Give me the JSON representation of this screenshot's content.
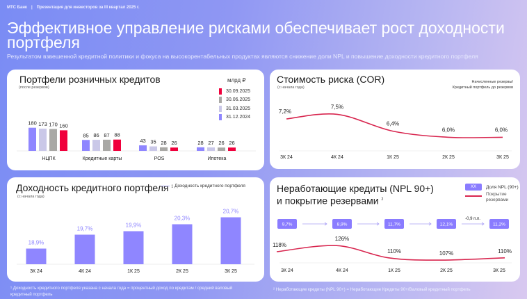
{
  "header": {
    "brand": "МТС Банк",
    "separator": "|",
    "presentation": "Презентация для инвесторов за III квартал 2025 г.",
    "title": "Эффективное управление рисками обеспечивает рост доходности портфеля",
    "subtitle": "Результатом взвешенной кредитной политики и фокуса на высокорентабельных продуктах являются снижение доли NPL и повышение доходности кредитного портфеля"
  },
  "chart_data": [
    {
      "type": "bar",
      "title": "Портфели розничных кредитов",
      "subtitle": "(после резервов)",
      "unit": "млрд ₽",
      "categories": [
        "НЦПК",
        "Кредитные карты",
        "POS",
        "Ипотека"
      ],
      "series": [
        {
          "name": "31.12.2024",
          "color": "#8f86ff",
          "values": [
            180,
            85,
            43,
            28
          ]
        },
        {
          "name": "31.03.2025",
          "color": "#cac8e8",
          "values": [
            173,
            86,
            35,
            27
          ]
        },
        {
          "name": "30.06.2025",
          "color": "#a9a8a5",
          "values": [
            170,
            87,
            28,
            26
          ]
        },
        {
          "name": "30.09.2025",
          "color": "#f0003c",
          "values": [
            160,
            88,
            26,
            26
          ]
        }
      ],
      "legend_order": [
        "30.09.2025",
        "30.06.2025",
        "31.03.2025",
        "31.12.2024"
      ]
    },
    {
      "type": "line",
      "title": "Стоимость риска (COR)",
      "subtitle": "(с начала года)",
      "note_line1": "Начисленные резервы/",
      "note_line2": "Кредитный портфель до резервов",
      "categories": [
        "3К 24",
        "4К 24",
        "1К 25",
        "2К 25",
        "3К 25"
      ],
      "values": [
        7.2,
        7.5,
        6.4,
        6.0,
        6.0
      ],
      "labels": [
        "7,2%",
        "7,5%",
        "6,4%",
        "6,0%",
        "6,0%"
      ],
      "color": "#d8264f"
    },
    {
      "type": "bar",
      "title": "Доходность кредитного портфеля",
      "title_sup": "1",
      "subtitle": "(с начала года)",
      "legend": "Доходность кредитного портфеля",
      "categories": [
        "3К 24",
        "4К 24",
        "1К 25",
        "2К 25",
        "3К 25"
      ],
      "values": [
        18.9,
        19.7,
        19.9,
        20.3,
        20.7
      ],
      "labels": [
        "18,9%",
        "19,7%",
        "19,9%",
        "20,3%",
        "20,7%"
      ],
      "color": "#8f86ff"
    },
    {
      "type": "line",
      "title_line1": "Неработающие кредиты (NPL 90+)",
      "title_line2": "и покрытие резервами",
      "title_sup": "2",
      "legend_box": "XX",
      "legend_npl": "Доля NPL (90+)",
      "legend_cov1": "Покрытие",
      "legend_cov2": "резервами",
      "categories": [
        "3К 24",
        "4К 24",
        "1К 25",
        "2К 25",
        "3К 25"
      ],
      "npl_share": [
        9.7,
        8.9,
        11.7,
        12.1,
        11.2
      ],
      "npl_labels": [
        "9,7%",
        "8,9%",
        "11,7%",
        "12,1%",
        "11,2%"
      ],
      "change_label": "-0,9 п.п.",
      "coverage": [
        118,
        126,
        110,
        107,
        110
      ],
      "coverage_labels": [
        "118%",
        "126%",
        "110%",
        "107%",
        "110%"
      ],
      "npl_color": "#8a7cff",
      "coverage_color": "#d8264f"
    }
  ],
  "footnotes": {
    "note1": "¹ Доходность кредитного портфеля указана с начала года = процентный доход по кредитам / средний валовый кредитный портфель",
    "note2": "² Неработающие кредиты (NPL 90+) = Неработающие Кредиты 90+/Валовый кредитный портфель"
  }
}
